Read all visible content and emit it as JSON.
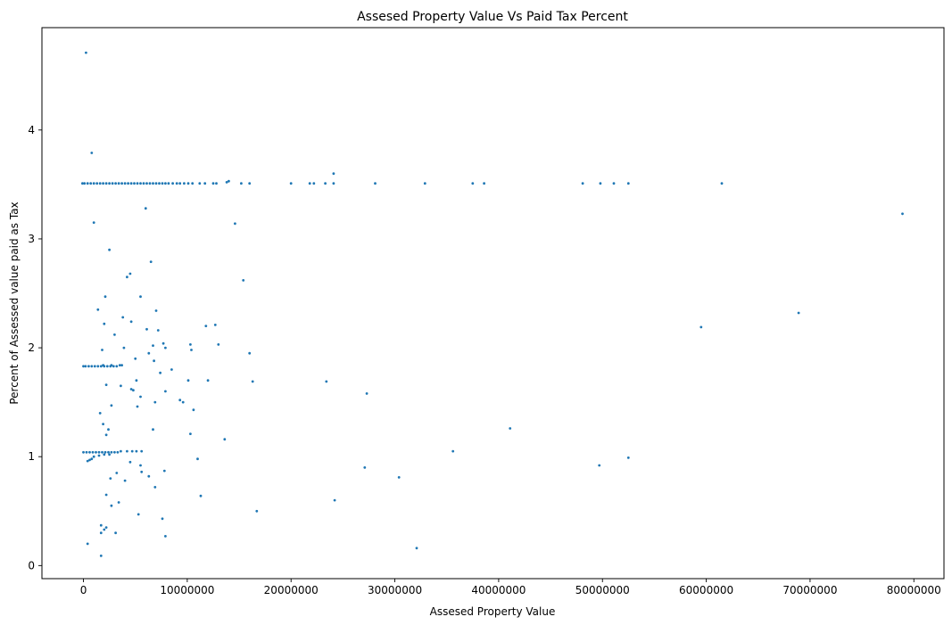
{
  "chart_data": {
    "type": "scatter",
    "title": "Assesed Property Value Vs Paid Tax Percent",
    "xlabel": "Assesed Property Value",
    "ylabel": "Percent of Assessed value paid as Tax",
    "xlim": [
      -4000000,
      82900000
    ],
    "ylim": [
      -0.12,
      4.94
    ],
    "xticks": [
      0,
      10000000,
      20000000,
      30000000,
      40000000,
      50000000,
      60000000,
      70000000,
      80000000
    ],
    "xtick_labels": [
      "0",
      "10000000",
      "20000000",
      "30000000",
      "40000000",
      "50000000",
      "60000000",
      "70000000",
      "80000000"
    ],
    "yticks": [
      0,
      1,
      2,
      3,
      4
    ],
    "ytick_labels": [
      "0",
      "1",
      "2",
      "3",
      "4"
    ],
    "grid": false,
    "legend": false,
    "marker_color": "#1f77b4",
    "series": [
      {
        "points": [
          [
            250000,
            4.71
          ],
          [
            800000,
            3.79
          ],
          [
            14000000,
            3.53
          ],
          [
            24100000,
            3.6
          ],
          [
            6000000,
            3.28
          ],
          [
            1000000,
            3.15
          ],
          [
            14600000,
            3.14
          ],
          [
            2500000,
            2.9
          ],
          [
            6500000,
            2.79
          ],
          [
            4500000,
            2.68
          ],
          [
            4200000,
            2.65
          ],
          [
            15400000,
            2.62
          ],
          [
            5500000,
            2.47
          ],
          [
            2100000,
            2.47
          ],
          [
            7000000,
            2.34
          ],
          [
            1400000,
            2.35
          ],
          [
            3800000,
            2.28
          ],
          [
            4600000,
            2.24
          ],
          [
            2000000,
            2.22
          ],
          [
            12700000,
            2.21
          ],
          [
            11800000,
            2.2
          ],
          [
            6100000,
            2.17
          ],
          [
            7200000,
            2.16
          ],
          [
            3000000,
            2.12
          ],
          [
            13000000,
            2.03
          ],
          [
            7700000,
            2.04
          ],
          [
            6700000,
            2.02
          ],
          [
            10300000,
            2.03
          ],
          [
            1800000,
            1.98
          ],
          [
            3900000,
            2.0
          ],
          [
            10400000,
            1.98
          ],
          [
            7900000,
            2.0
          ],
          [
            16000000,
            1.95
          ],
          [
            6300000,
            1.95
          ],
          [
            6800000,
            1.88
          ],
          [
            5000000,
            1.9
          ],
          [
            8500000,
            1.8
          ],
          [
            7400000,
            1.77
          ],
          [
            12000000,
            1.7
          ],
          [
            5100000,
            1.7
          ],
          [
            10100000,
            1.7
          ],
          [
            23400000,
            1.69
          ],
          [
            16300000,
            1.69
          ],
          [
            2200000,
            1.66
          ],
          [
            3600000,
            1.65
          ],
          [
            4600000,
            1.62
          ],
          [
            4800000,
            1.61
          ],
          [
            7900000,
            1.6
          ],
          [
            27300000,
            1.58
          ],
          [
            5500000,
            1.55
          ],
          [
            9300000,
            1.52
          ],
          [
            9600000,
            1.5
          ],
          [
            6900000,
            1.5
          ],
          [
            5200000,
            1.46
          ],
          [
            10600000,
            1.43
          ],
          [
            2700000,
            1.47
          ],
          [
            1600000,
            1.4
          ],
          [
            1900000,
            1.3
          ],
          [
            6700000,
            1.25
          ],
          [
            2400000,
            1.25
          ],
          [
            10300000,
            1.21
          ],
          [
            2200000,
            1.2
          ],
          [
            13600000,
            1.16
          ],
          [
            41100000,
            1.26
          ],
          [
            35600000,
            1.05
          ],
          [
            4500000,
            0.95
          ],
          [
            5500000,
            0.92
          ],
          [
            11000000,
            0.98
          ],
          [
            7800000,
            0.87
          ],
          [
            27100000,
            0.9
          ],
          [
            49700000,
            0.92
          ],
          [
            52500000,
            0.99
          ],
          [
            3200000,
            0.85
          ],
          [
            4000000,
            0.78
          ],
          [
            6300000,
            0.82
          ],
          [
            30400000,
            0.81
          ],
          [
            2600000,
            0.8
          ],
          [
            6900000,
            0.72
          ],
          [
            5600000,
            0.86
          ],
          [
            11300000,
            0.64
          ],
          [
            24200000,
            0.6
          ],
          [
            2200000,
            0.65
          ],
          [
            3400000,
            0.58
          ],
          [
            2700000,
            0.55
          ],
          [
            16700000,
            0.5
          ],
          [
            5300000,
            0.47
          ],
          [
            7600000,
            0.43
          ],
          [
            1700000,
            0.37
          ],
          [
            2200000,
            0.35
          ],
          [
            2000000,
            0.33
          ],
          [
            3100000,
            0.3
          ],
          [
            7900000,
            0.27
          ],
          [
            1700000,
            0.3
          ],
          [
            1700000,
            0.09
          ],
          [
            32100000,
            0.16
          ],
          [
            400000,
            0.2
          ],
          [
            59500000,
            2.19
          ],
          [
            68900000,
            2.32
          ],
          [
            78900000,
            3.23
          ],
          [
            20000000,
            3.51
          ],
          [
            21800000,
            3.51
          ],
          [
            22200000,
            3.51
          ],
          [
            23300000,
            3.51
          ],
          [
            24100000,
            3.51
          ],
          [
            28100000,
            3.51
          ],
          [
            32900000,
            3.51
          ],
          [
            37500000,
            3.51
          ],
          [
            38600000,
            3.51
          ],
          [
            48100000,
            3.51
          ],
          [
            49800000,
            3.51
          ],
          [
            51100000,
            3.51
          ],
          [
            52500000,
            3.51
          ],
          [
            61500000,
            3.51
          ],
          [
            16000000,
            3.51
          ],
          [
            15200000,
            3.51
          ],
          [
            13800000,
            3.52
          ],
          [
            12800000,
            3.51
          ],
          [
            12500000,
            3.51
          ],
          [
            11700000,
            3.51
          ],
          [
            11200000,
            3.51
          ],
          [
            10500000,
            3.51
          ],
          [
            10100000,
            3.51
          ],
          [
            9700000,
            3.51
          ],
          [
            9300000,
            3.51
          ],
          [
            9000000,
            3.51
          ],
          [
            8600000,
            3.51
          ],
          [
            8200000,
            3.51
          ],
          [
            7900000,
            3.51
          ],
          [
            7600000,
            3.51
          ],
          [
            7300000,
            3.51
          ],
          [
            7000000,
            3.51
          ],
          [
            6700000,
            3.51
          ],
          [
            6400000,
            3.51
          ],
          [
            6100000,
            3.51
          ],
          [
            5800000,
            3.51
          ],
          [
            5500000,
            3.51
          ],
          [
            5200000,
            3.51
          ],
          [
            4900000,
            3.51
          ],
          [
            4600000,
            3.51
          ],
          [
            4300000,
            3.51
          ],
          [
            4000000,
            3.51
          ],
          [
            3700000,
            3.51
          ],
          [
            3400000,
            3.51
          ],
          [
            3100000,
            3.51
          ],
          [
            2800000,
            3.51
          ],
          [
            2500000,
            3.51
          ],
          [
            2200000,
            3.51
          ],
          [
            1900000,
            3.51
          ],
          [
            1600000,
            3.51
          ],
          [
            1300000,
            3.51
          ],
          [
            1000000,
            3.51
          ],
          [
            700000,
            3.51
          ],
          [
            400000,
            3.51
          ],
          [
            100000,
            3.51
          ],
          [
            -100000,
            3.51
          ],
          [
            3200000,
            1.83
          ],
          [
            2900000,
            1.83
          ],
          [
            2600000,
            1.83
          ],
          [
            2300000,
            1.83
          ],
          [
            2000000,
            1.83
          ],
          [
            1700000,
            1.83
          ],
          [
            1400000,
            1.83
          ],
          [
            1100000,
            1.83
          ],
          [
            800000,
            1.83
          ],
          [
            500000,
            1.83
          ],
          [
            200000,
            1.83
          ],
          [
            0,
            1.83
          ],
          [
            1900000,
            1.84
          ],
          [
            2700000,
            1.84
          ],
          [
            3500000,
            1.84
          ],
          [
            3700000,
            1.84
          ],
          [
            3300000,
            1.04
          ],
          [
            3000000,
            1.04
          ],
          [
            2700000,
            1.04
          ],
          [
            2400000,
            1.04
          ],
          [
            2100000,
            1.04
          ],
          [
            1800000,
            1.04
          ],
          [
            1500000,
            1.04
          ],
          [
            1200000,
            1.04
          ],
          [
            900000,
            1.04
          ],
          [
            600000,
            1.04
          ],
          [
            300000,
            1.04
          ],
          [
            0,
            1.04
          ],
          [
            3600000,
            1.05
          ],
          [
            4200000,
            1.05
          ],
          [
            4700000,
            1.05
          ],
          [
            5100000,
            1.05
          ],
          [
            5600000,
            1.05
          ],
          [
            2500000,
            1.02
          ],
          [
            2000000,
            1.02
          ],
          [
            1500000,
            1.01
          ],
          [
            1000000,
            1.0
          ],
          [
            800000,
            0.98
          ],
          [
            600000,
            0.97
          ],
          [
            400000,
            0.96
          ]
        ]
      }
    ]
  }
}
